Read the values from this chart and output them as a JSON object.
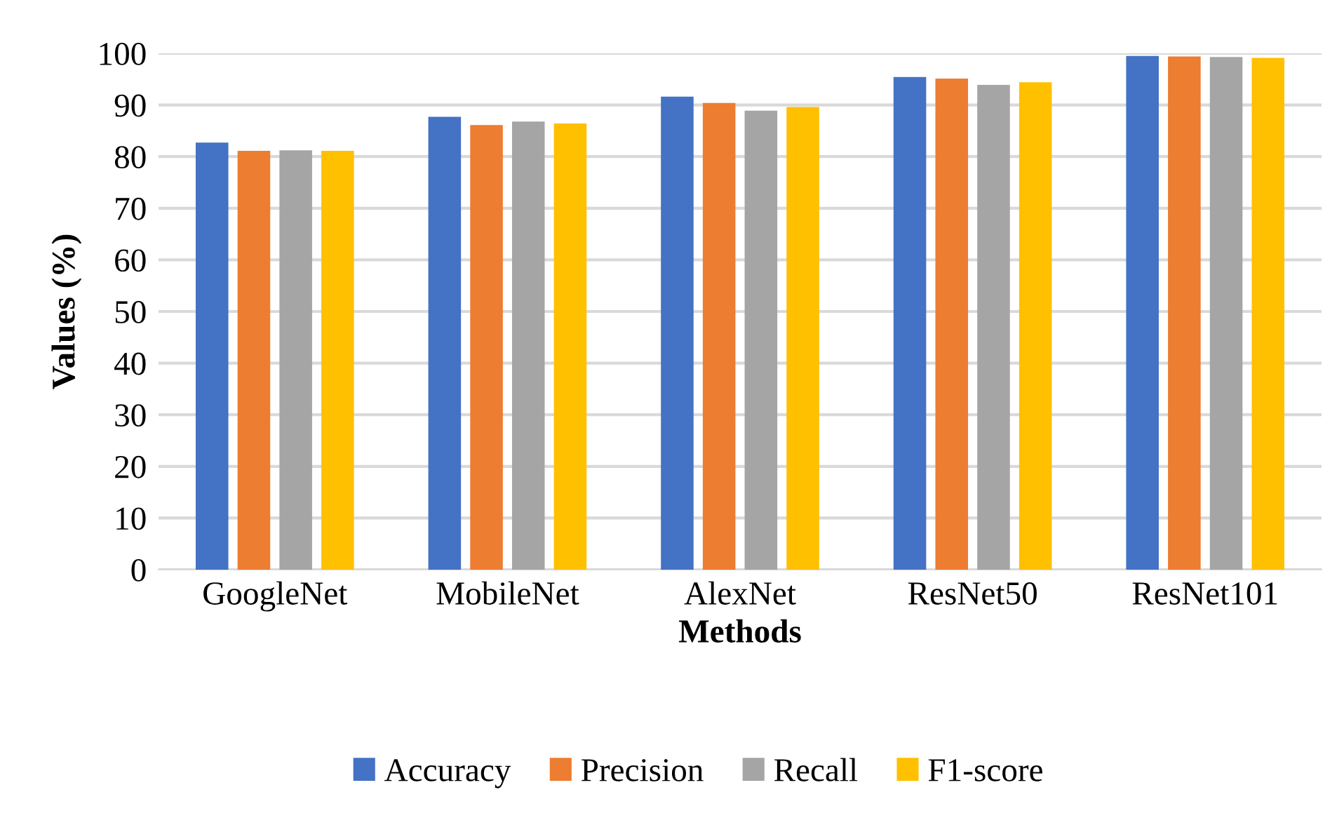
{
  "chart_data": {
    "type": "bar",
    "xlabel": "Methods",
    "ylabel": "Values (%)",
    "categories": [
      "GoogleNet",
      "MobileNet",
      "AlexNet",
      "ResNet50",
      "ResNet101"
    ],
    "series": [
      {
        "name": "Accuracy",
        "color": "#4472c4",
        "values": [
          82.7,
          87.7,
          91.6,
          95.4,
          99.5
        ]
      },
      {
        "name": "Precision",
        "color": "#ed7d31",
        "values": [
          81.1,
          86.1,
          90.4,
          95.1,
          99.4
        ]
      },
      {
        "name": "Recall",
        "color": "#a5a5a5",
        "values": [
          81.2,
          86.8,
          88.9,
          93.9,
          99.3
        ]
      },
      {
        "name": "F1-score",
        "color": "#ffc000",
        "values": [
          81.1,
          86.4,
          89.6,
          94.4,
          99.1
        ]
      }
    ],
    "ylim": [
      0,
      100
    ],
    "yticks": [
      0,
      10,
      20,
      30,
      40,
      50,
      60,
      70,
      80,
      90,
      100
    ],
    "grid": "y",
    "legend": "bottom"
  }
}
